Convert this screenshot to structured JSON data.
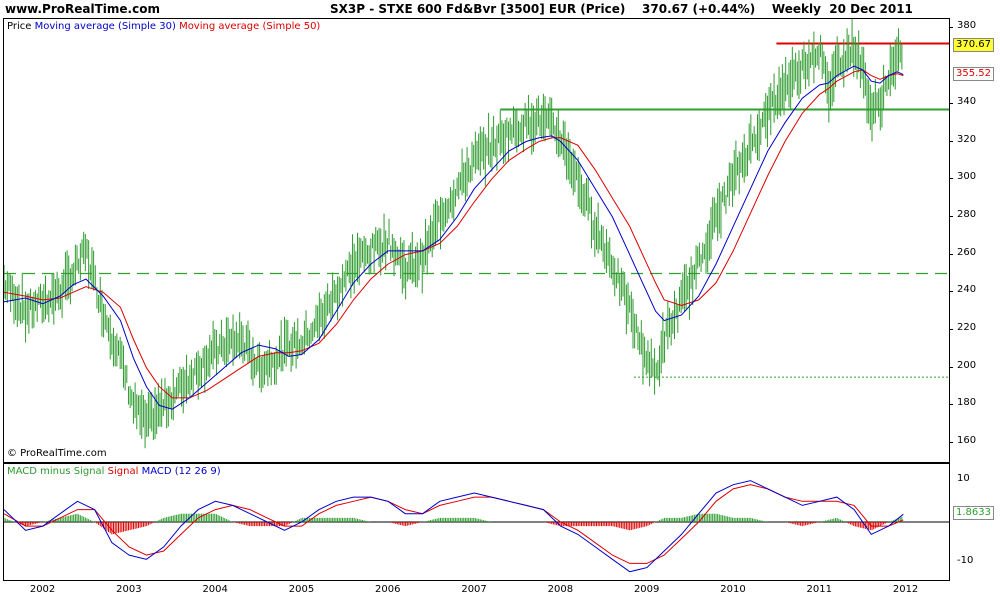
{
  "header": {
    "site": "www.ProRealTime.com",
    "title": "SX3P - STXE 600 Fd&Bvr [3500] EUR (Price)    370.67 (+0.44%)    Weekly  20 Dec 2011"
  },
  "price_panel": {
    "legend": {
      "price": "Price",
      "ma30": "Moving average (Simple 30)",
      "ma50": "Moving average (Simple 50)"
    },
    "copyright": "© ProRealTime.com",
    "last_price_label": "370.67",
    "ma_label": "355.52",
    "colors": {
      "candle": "#2e9b2e",
      "ma30": "#0000cc",
      "ma50": "#dd0000",
      "resistance": "#dd0000",
      "support": "#2fa12f"
    }
  },
  "macd_panel": {
    "legend": {
      "hist": "MACD minus Signal",
      "signal": "Signal",
      "macd": "MACD (12 26 9)"
    },
    "last_label": "1.8633",
    "colors": {
      "hist": "#2e9b2e",
      "signal": "#dd0000",
      "macd": "#0000cc"
    }
  },
  "chart_data": [
    {
      "type": "line",
      "x_ticks": [
        "2002",
        "2003",
        "2004",
        "2005",
        "2006",
        "2007",
        "2008",
        "2009",
        "2010",
        "2011",
        "2012"
      ],
      "y_ticks": [
        160,
        180,
        200,
        220,
        240,
        260,
        280,
        300,
        320,
        340,
        380
      ],
      "ylim": [
        150,
        385
      ],
      "grid": false,
      "x": [
        2001.55,
        2001.8,
        2002.0,
        2002.2,
        2002.35,
        2002.5,
        2002.7,
        2002.9,
        2003.05,
        2003.2,
        2003.35,
        2003.5,
        2003.7,
        2003.9,
        2004.1,
        2004.3,
        2004.5,
        2004.7,
        2004.85,
        2005.0,
        2005.2,
        2005.4,
        2005.6,
        2005.8,
        2006.0,
        2006.2,
        2006.4,
        2006.6,
        2006.8,
        2007.0,
        2007.2,
        2007.4,
        2007.6,
        2007.75,
        2007.9,
        2008.0,
        2008.2,
        2008.4,
        2008.6,
        2008.8,
        2008.95,
        2009.1,
        2009.2,
        2009.4,
        2009.6,
        2009.8,
        2010.0,
        2010.2,
        2010.4,
        2010.6,
        2010.8,
        2011.0,
        2011.1,
        2011.2,
        2011.4,
        2011.5,
        2011.6,
        2011.7,
        2011.8,
        2011.9,
        2011.97
      ],
      "series": [
        {
          "name": "Price",
          "values": [
            245,
            230,
            235,
            240,
            250,
            262,
            230,
            205,
            180,
            170,
            178,
            185,
            195,
            205,
            212,
            215,
            200,
            205,
            212,
            214,
            225,
            240,
            255,
            262,
            268,
            252,
            258,
            280,
            295,
            310,
            318,
            325,
            330,
            332,
            328,
            322,
            300,
            275,
            255,
            230,
            210,
            196,
            215,
            235,
            255,
            280,
            300,
            318,
            335,
            350,
            360,
            370,
            345,
            362,
            370,
            358,
            335,
            340,
            355,
            362,
            370.67
          ]
        },
        {
          "name": "Moving average (Simple 30)",
          "values": [
            235,
            237,
            234,
            238,
            244,
            247,
            238,
            225,
            205,
            190,
            180,
            178,
            184,
            192,
            200,
            208,
            212,
            210,
            206,
            207,
            215,
            230,
            245,
            255,
            262,
            262,
            262,
            268,
            280,
            295,
            305,
            315,
            320,
            322,
            323,
            320,
            310,
            295,
            280,
            260,
            245,
            230,
            225,
            228,
            238,
            255,
            275,
            295,
            315,
            330,
            343,
            350,
            351,
            355,
            360,
            358,
            352,
            351,
            355,
            357,
            355.52
          ]
        },
        {
          "name": "Moving average (Simple 50)",
          "values": [
            240,
            238,
            236,
            237,
            240,
            243,
            240,
            232,
            215,
            200,
            190,
            184,
            184,
            188,
            194,
            200,
            206,
            208,
            208,
            209,
            213,
            223,
            236,
            247,
            255,
            260,
            262,
            266,
            275,
            288,
            300,
            310,
            316,
            320,
            322,
            322,
            318,
            305,
            290,
            275,
            260,
            245,
            236,
            233,
            236,
            245,
            262,
            282,
            302,
            320,
            335,
            345,
            348,
            352,
            357,
            358,
            355,
            353,
            355,
            356,
            355
          ]
        }
      ],
      "annotations": {
        "resistance": 372,
        "support_high": 337,
        "support_mid": 250,
        "support_low": 195
      }
    },
    {
      "type": "line",
      "y_ticks": [
        10,
        -10
      ],
      "ylim": [
        -14,
        14
      ],
      "x": [
        2001.55,
        2001.8,
        2002.0,
        2002.2,
        2002.4,
        2002.6,
        2002.8,
        2003.0,
        2003.2,
        2003.4,
        2003.6,
        2003.8,
        2004.0,
        2004.2,
        2004.4,
        2004.6,
        2004.8,
        2005.0,
        2005.2,
        2005.4,
        2005.6,
        2005.8,
        2006.0,
        2006.2,
        2006.4,
        2006.6,
        2006.8,
        2007.0,
        2007.2,
        2007.4,
        2007.6,
        2007.8,
        2008.0,
        2008.2,
        2008.4,
        2008.6,
        2008.8,
        2009.0,
        2009.2,
        2009.4,
        2009.6,
        2009.8,
        2010.0,
        2010.2,
        2010.4,
        2010.6,
        2010.8,
        2011.0,
        2011.2,
        2011.4,
        2011.6,
        2011.8,
        2011.97
      ],
      "series": [
        {
          "name": "MACD",
          "values": [
            3,
            -2,
            -1,
            2,
            5,
            3,
            -5,
            -8,
            -9,
            -6,
            -1,
            3,
            5,
            4,
            2,
            0,
            -2,
            0,
            3,
            5,
            6,
            6,
            5,
            2,
            2,
            5,
            6,
            7,
            6,
            5,
            4,
            3,
            -1,
            -3,
            -6,
            -9,
            -12,
            -11,
            -7,
            -3,
            2,
            7,
            9,
            10,
            8,
            6,
            4,
            5,
            6,
            3,
            -3,
            -1,
            1.86
          ]
        },
        {
          "name": "Signal",
          "values": [
            2,
            -1,
            -1,
            1,
            3,
            3,
            -2,
            -6,
            -8,
            -7,
            -3,
            1,
            3,
            4,
            3,
            1,
            -1,
            -1,
            2,
            4,
            5,
            6,
            5,
            3,
            2,
            4,
            5,
            6,
            6,
            5,
            4,
            3,
            0,
            -2,
            -5,
            -8,
            -10,
            -10,
            -8,
            -4,
            0,
            5,
            8,
            9,
            8,
            6,
            5,
            5,
            5,
            4,
            -1,
            -1,
            0.5
          ]
        }
      ]
    }
  ]
}
